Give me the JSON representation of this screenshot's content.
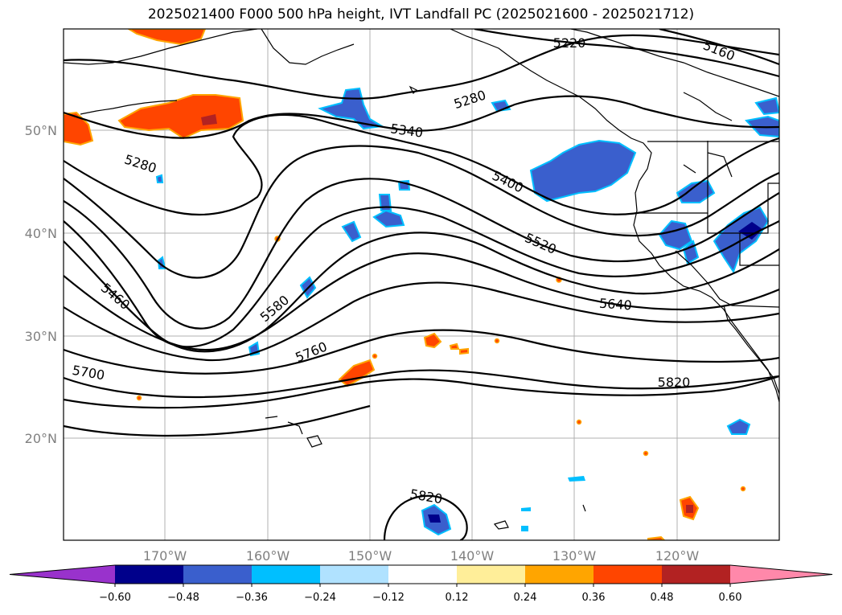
{
  "title": "2025021400 F000 500 hPa height, IVT Landfall PC (2025021600 - 2025021712)",
  "lat_labels": [
    "50°N",
    "40°N",
    "30°N",
    "20°N"
  ],
  "lon_labels": [
    "170°W",
    "160°W",
    "150°W",
    "140°W",
    "130°W",
    "120°W"
  ],
  "contour_labels": [
    "5220",
    "5160",
    "5280",
    "5340",
    "5280",
    "5400",
    "5520",
    "5460",
    "5580",
    "5640",
    "5760",
    "5700",
    "5820",
    "5820"
  ],
  "colorbar": {
    "ticks": [
      "−0.60",
      "−0.48",
      "−0.36",
      "−0.24",
      "−0.12",
      "0.12",
      "0.24",
      "0.36",
      "0.48",
      "0.60"
    ],
    "colors": [
      "#9932cc",
      "#00008b",
      "#3a5fcd",
      "#00bfff",
      "#b0e2ff",
      "#ffffff",
      "#ffee99",
      "#ffa500",
      "#ff4500",
      "#b22222",
      "#ff88aa"
    ]
  }
}
